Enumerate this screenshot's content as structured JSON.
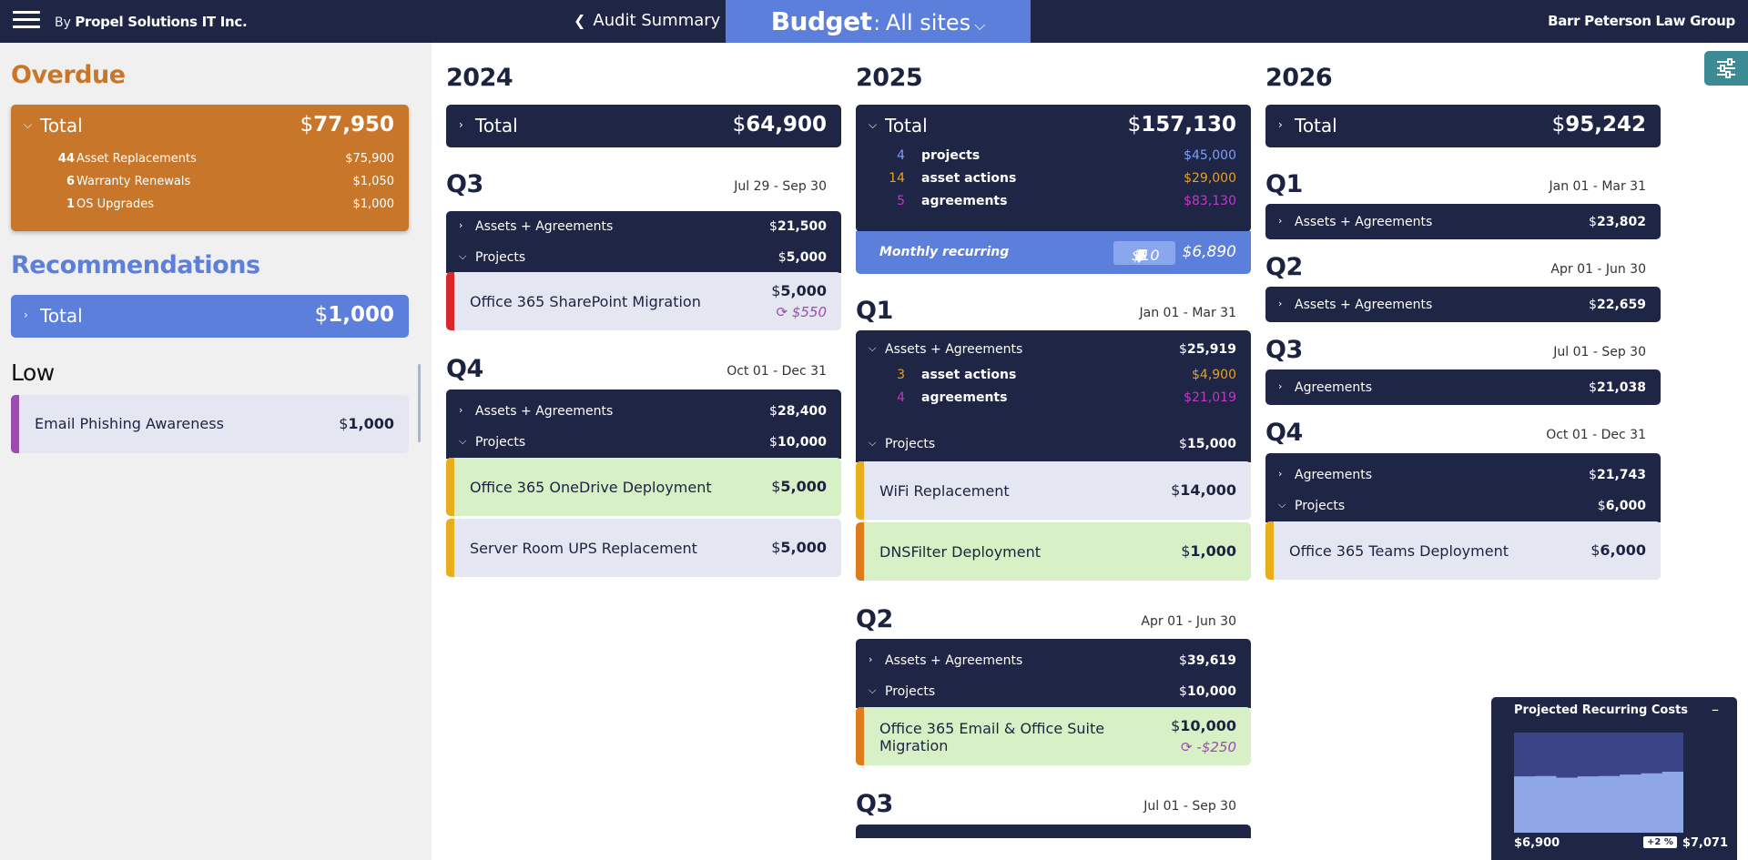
{
  "topbar": {
    "by": "By",
    "company": "Propel Solutions IT Inc.",
    "audit_link": "Audit Summary",
    "budget_title": "Budget",
    "site": "All sites",
    "client": "Barr Peterson Law Group"
  },
  "left": {
    "overdue_title": "Overdue",
    "overdue_total_label": "Total",
    "overdue_total": "77,950",
    "overdue_items": [
      {
        "count": "44",
        "label": "Asset Replacements",
        "value": "$75,900"
      },
      {
        "count": "6",
        "label": "Warranty Renewals",
        "value": "$1,050"
      },
      {
        "count": "1",
        "label": "OS Upgrades",
        "value": "$1,000"
      }
    ],
    "reco_title": "Recommendations",
    "reco_total_label": "Total",
    "reco_total": "1,000",
    "low_title": "Low",
    "low_item": {
      "label": "Email Phishing Awareness",
      "value": "1,000"
    }
  },
  "currency": "$",
  "y2024": {
    "year": "2024",
    "total_label": "Total",
    "total": "64,900",
    "q3": {
      "label": "Q3",
      "dates": "Jul 29 - Sep 30",
      "assets_label": "Assets + Agreements",
      "assets": "21,500",
      "projects_label": "Projects",
      "projects": "5,000",
      "proj1": {
        "label": "Office 365 SharePoint Migration",
        "value": "5,000",
        "recurring": "$550"
      }
    },
    "q4": {
      "label": "Q4",
      "dates": "Oct 01 - Dec 31",
      "assets_label": "Assets + Agreements",
      "assets": "28,400",
      "projects_label": "Projects",
      "projects": "10,000",
      "proj1": {
        "label": "Office 365 OneDrive Deployment",
        "value": "5,000"
      },
      "proj2": {
        "label": "Server Room UPS Replacement",
        "value": "5,000"
      }
    }
  },
  "y2025": {
    "year": "2025",
    "total_label": "Total",
    "total": "157,130",
    "breakdown": [
      {
        "count": "4",
        "label": "projects",
        "value": "$45,000"
      },
      {
        "count": "14",
        "label": "asset actions",
        "value": "$29,000"
      },
      {
        "count": "5",
        "label": "agreements",
        "value": "$83,130"
      }
    ],
    "monthly_label": "Monthly recurring",
    "monthly_change": "$10",
    "monthly_value": "$6,890",
    "q1": {
      "label": "Q1",
      "dates": "Jan 01 - Mar 31",
      "assets_label": "Assets + Agreements",
      "assets": "25,919",
      "sub": [
        {
          "count": "3",
          "label": "asset actions",
          "value": "$4,900"
        },
        {
          "count": "4",
          "label": "agreements",
          "value": "$21,019"
        }
      ],
      "projects_label": "Projects",
      "projects": "15,000",
      "proj1": {
        "label": "WiFi Replacement",
        "value": "14,000"
      },
      "proj2": {
        "label": "DNSFilter Deployment",
        "value": "1,000"
      }
    },
    "q2": {
      "label": "Q2",
      "dates": "Apr 01 - Jun 30",
      "assets_label": "Assets + Agreements",
      "assets": "39,619",
      "projects_label": "Projects",
      "projects": "10,000",
      "proj1": {
        "label": "Office 365 Email & Office Suite Migration",
        "value": "10,000",
        "recurring": "-$250"
      }
    },
    "q3": {
      "label": "Q3",
      "dates": "Jul 01 - Sep 30"
    }
  },
  "y2026": {
    "year": "2026",
    "total_label": "Total",
    "total": "95,242",
    "q1": {
      "label": "Q1",
      "dates": "Jan 01 - Mar 31",
      "row_label": "Assets + Agreements",
      "row_value": "23,802"
    },
    "q2": {
      "label": "Q2",
      "dates": "Apr 01 - Jun 30",
      "row_label": "Assets + Agreements",
      "row_value": "22,659"
    },
    "q3": {
      "label": "Q3",
      "dates": "Jul 01 - Sep 30",
      "row_label": "Agreements",
      "row_value": "21,038"
    },
    "q4": {
      "label": "Q4",
      "dates": "Oct 01 - Dec 31",
      "agreements_label": "Agreements",
      "agreements": "21,743",
      "projects_label": "Projects",
      "projects": "6,000",
      "proj1": {
        "label": "Office 365 Teams Deployment",
        "value": "6,000"
      }
    }
  },
  "widget": {
    "title": "Projected Recurring Costs",
    "low": "$6,900",
    "high": "$7,071",
    "pct": "+2 %",
    "colors": {
      "bg": "#3b4486",
      "fill": "#8fa7e6"
    },
    "chart_data": {
      "type": "area",
      "values": [
        6900,
        6905,
        6880,
        6900,
        6905,
        6930,
        6950,
        6975,
        7071
      ]
    }
  },
  "colors": {
    "navy": "#1e2545",
    "overdue": "#c8772a",
    "reco": "#5c7fdb",
    "red": "#d8262c",
    "yellow": "#e9ae1c",
    "orange": "#e07b1c",
    "purple": "#9b4dad",
    "teal": "#3a8b94"
  },
  "icons": {
    "menu": "hamburger-icon",
    "back": "chevron-left-icon",
    "caret": "chevron-down-icon",
    "settings": "sliders-icon",
    "recurring": "refresh-icon",
    "down_arrow": "arrow-down-icon",
    "minimize": "minus-icon"
  }
}
